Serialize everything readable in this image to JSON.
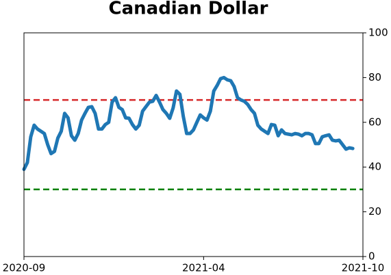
{
  "chart_data": {
    "type": "line",
    "title": "Canadian Dollar",
    "categories": [
      "2020-09",
      null,
      null,
      null,
      null,
      null,
      null,
      null,
      null,
      null,
      null,
      null,
      null,
      null,
      null,
      null,
      null,
      null,
      null,
      null,
      null,
      null,
      null,
      null,
      null,
      null,
      null,
      null,
      null,
      null,
      null,
      null,
      null,
      null,
      null,
      null,
      null,
      null,
      null,
      null,
      null,
      null,
      null,
      null,
      null,
      null,
      null,
      null,
      null,
      null,
      null,
      null,
      null,
      "2021-04",
      null,
      null,
      null,
      null,
      null,
      null,
      null,
      null,
      null,
      null,
      null,
      null,
      null,
      null,
      null,
      null,
      null,
      null,
      null,
      null,
      null,
      null,
      null,
      null,
      null,
      null,
      null,
      null,
      null,
      null,
      null,
      null,
      null,
      null,
      null,
      null,
      null,
      null,
      null,
      null,
      null,
      null,
      null,
      null,
      null,
      null,
      "2021-10"
    ],
    "series": [
      {
        "color": "#1f77b4",
        "values": [
          39,
          42,
          53.5,
          58.7,
          57,
          56,
          55,
          50,
          46,
          47,
          53,
          56,
          64,
          62,
          54,
          52,
          55,
          61,
          64,
          66.7,
          67,
          64,
          57,
          57,
          59,
          60,
          69,
          71,
          66.7,
          65.7,
          62,
          61.8,
          59,
          57,
          58.7,
          65,
          67,
          69,
          69.4,
          72,
          69,
          65.7,
          64,
          61.8,
          66.4,
          74,
          72.5,
          62.7,
          55,
          55,
          56.6,
          60,
          63.3,
          62,
          61,
          65,
          74,
          76.5,
          79.5,
          80,
          79,
          78.6,
          76,
          71,
          70,
          69.4,
          68,
          65.7,
          64,
          58.7,
          57,
          56,
          55,
          59,
          58.7,
          54,
          56.6,
          55,
          54.7,
          54.4,
          55,
          54.7,
          54,
          55,
          55,
          54.4,
          50.5,
          50.5,
          53.5,
          54,
          54.4,
          52,
          51.7,
          52,
          50,
          48,
          48.6,
          48.3,
          null,
          null,
          null
        ]
      }
    ],
    "hlines": [
      {
        "value": 70,
        "color": "#d62728"
      },
      {
        "value": 30,
        "color": "#008000"
      }
    ],
    "ylim": [
      0,
      100
    ],
    "yticks": [
      0,
      20,
      40,
      60,
      80,
      100
    ],
    "y_axis_side": "right",
    "grid": false
  }
}
